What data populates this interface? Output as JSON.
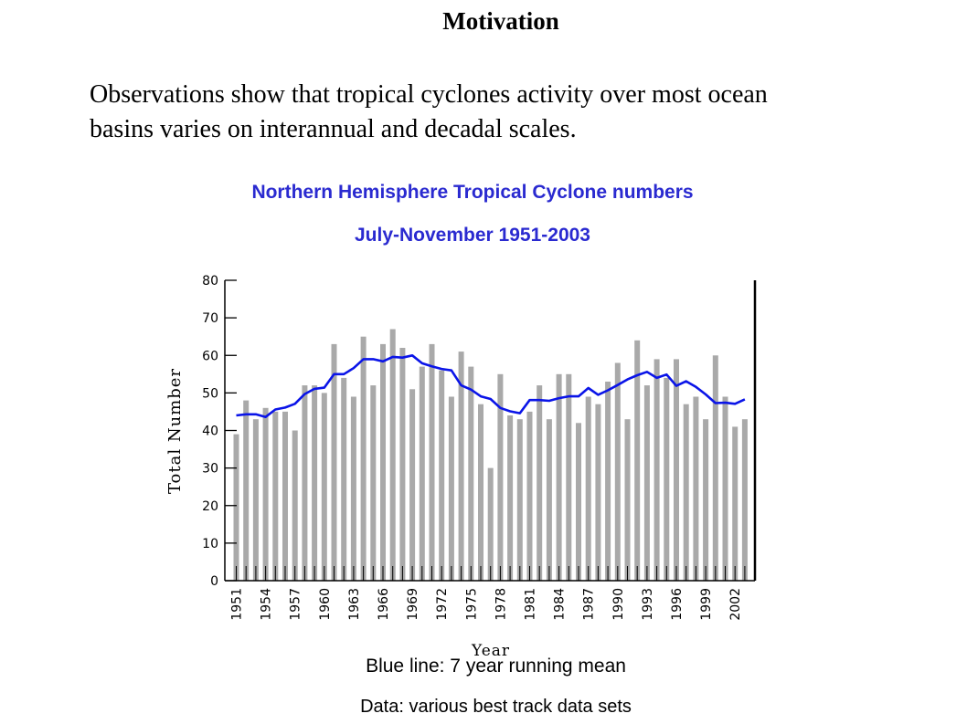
{
  "slide": {
    "title": "Motivation",
    "intro_line1": "Observations show that tropical cyclones activity over most ocean",
    "intro_line2": "basins varies on interannual and decadal scales."
  },
  "notes": {
    "line1": "Blue line: 7 year running mean",
    "line2": "Data: various best track data sets"
  },
  "colors": {
    "bars": "#a9a9a9",
    "running_mean": "#0a14e8",
    "title": "#2a2ad0"
  },
  "chart_data": {
    "type": "bar",
    "title": "Northern Hemisphere Tropical Cyclone numbers",
    "subtitle": "July-November 1951-2003",
    "xlabel": "Year",
    "ylabel": "Total Number",
    "ylim": [
      0,
      80
    ],
    "yticks": [
      0,
      10,
      20,
      30,
      40,
      50,
      60,
      70,
      80
    ],
    "xtick_labels": [
      "1951",
      "1954",
      "1957",
      "1960",
      "1963",
      "1966",
      "1969",
      "1972",
      "1975",
      "1978",
      "1981",
      "1984",
      "1987",
      "1990",
      "1993",
      "1996",
      "1999",
      "2002"
    ],
    "x": [
      1951,
      1952,
      1953,
      1954,
      1955,
      1956,
      1957,
      1958,
      1959,
      1960,
      1961,
      1962,
      1963,
      1964,
      1965,
      1966,
      1967,
      1968,
      1969,
      1970,
      1971,
      1972,
      1973,
      1974,
      1975,
      1976,
      1977,
      1978,
      1979,
      1980,
      1981,
      1982,
      1983,
      1984,
      1985,
      1986,
      1987,
      1988,
      1989,
      1990,
      1991,
      1992,
      1993,
      1994,
      1995,
      1996,
      1997,
      1998,
      1999,
      2000,
      2001,
      2002,
      2003
    ],
    "series": [
      {
        "name": "Tropical cyclone numbers",
        "type": "bar",
        "values": [
          39,
          48,
          43,
          46,
          45,
          45,
          40,
          52,
          52,
          50,
          63,
          54,
          49,
          65,
          52,
          63,
          67,
          62,
          51,
          57,
          63,
          56,
          49,
          61,
          57,
          47,
          30,
          55,
          44,
          43,
          45,
          52,
          43,
          55,
          55,
          42,
          49,
          47,
          53,
          58,
          43,
          64,
          52,
          59,
          54,
          59,
          47,
          49,
          43,
          60,
          49,
          41,
          43
        ]
      },
      {
        "name": "7 year running mean",
        "type": "line",
        "values": [
          44,
          44.3,
          44.3,
          43.6,
          45.6,
          46.1,
          47.1,
          49.7,
          51.1,
          51.4,
          55,
          55,
          56.6,
          59,
          59,
          58.4,
          59.6,
          59.4,
          60,
          57.9,
          57.1,
          56.4,
          56,
          52,
          50.9,
          49.1,
          48.4,
          46,
          45.1,
          44.6,
          48.1,
          48.1,
          47.9,
          48.6,
          49.1,
          49.1,
          51.3,
          49.5,
          50.7,
          52.1,
          53.6,
          54.7,
          55.6,
          54,
          54.9,
          51.9,
          53.1,
          51.6,
          49.6,
          47.3,
          47.4,
          47.1,
          48.3
        ]
      }
    ]
  }
}
